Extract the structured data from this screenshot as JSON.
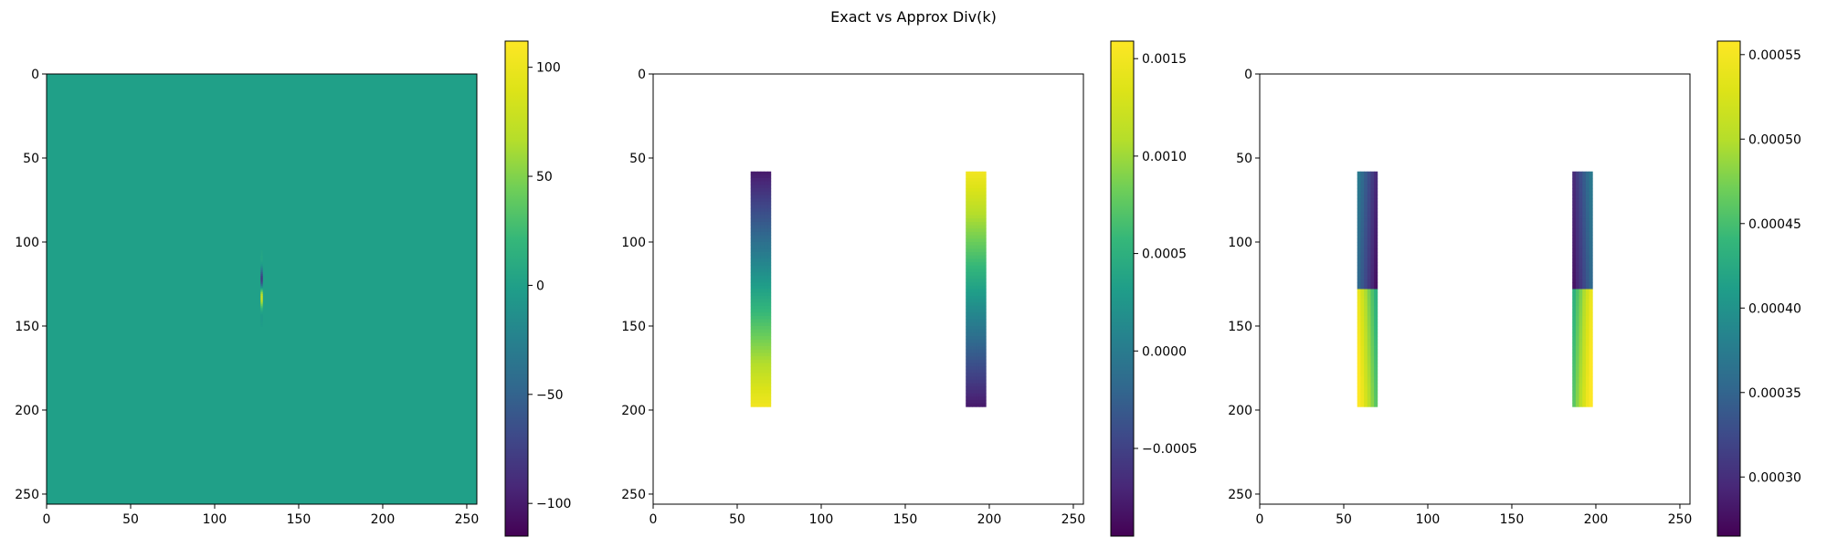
{
  "figure": {
    "title": "Exact vs Approx Div(k)"
  },
  "chart_data": [
    {
      "type": "heatmap",
      "title": "",
      "xlabel": "",
      "ylabel": "",
      "xlim": [
        0,
        256
      ],
      "ylim": [
        256,
        0
      ],
      "xticks": [
        0,
        50,
        100,
        150,
        200,
        250
      ],
      "yticks": [
        0,
        50,
        100,
        150,
        200,
        250
      ],
      "colormap": "viridis",
      "background_value": 0,
      "features": [
        {
          "kind": "vertical-spike",
          "x": 128,
          "y_center": 127,
          "y_extent": [
            105,
            150
          ],
          "value_range": [
            -110,
            110
          ]
        }
      ],
      "colorbar": {
        "vmin": -115,
        "vmax": 112,
        "ticks": [
          -100,
          -50,
          0,
          50,
          100
        ],
        "tick_labels": [
          "−100",
          "−50",
          "0",
          "50",
          "100"
        ]
      }
    },
    {
      "type": "heatmap",
      "title": "",
      "xlabel": "",
      "ylabel": "",
      "xlim": [
        0,
        256
      ],
      "ylim": [
        256,
        0
      ],
      "xticks": [
        0,
        50,
        100,
        150,
        200,
        250
      ],
      "yticks": [
        0,
        50,
        100,
        150,
        200,
        250
      ],
      "colormap": "viridis",
      "masked_background": true,
      "strips": [
        {
          "x": [
            58,
            70
          ],
          "y": [
            58,
            198
          ],
          "top_value": -0.0008,
          "bottom_value": 0.0015
        },
        {
          "x": [
            186,
            198
          ],
          "y": [
            58,
            198
          ],
          "top_value": 0.0015,
          "bottom_value": -0.0008
        }
      ],
      "colorbar": {
        "vmin": -0.00095,
        "vmax": 0.00159,
        "ticks": [
          -0.0005,
          0.0,
          0.0005,
          0.001,
          0.0015
        ],
        "tick_labels": [
          "−0.0005",
          "0.0000",
          "0.0005",
          "0.0010",
          "0.0015"
        ]
      }
    },
    {
      "type": "heatmap",
      "title": "",
      "xlabel": "",
      "ylabel": "",
      "xlim": [
        0,
        256
      ],
      "ylim": [
        256,
        0
      ],
      "xticks": [
        0,
        50,
        100,
        150,
        200,
        250
      ],
      "yticks": [
        0,
        50,
        100,
        150,
        200,
        250
      ],
      "colormap": "viridis",
      "masked_background": true,
      "strips": [
        {
          "x": [
            58,
            70
          ],
          "y": [
            58,
            198
          ],
          "left_top": 0.00038,
          "right_top": 0.00029,
          "left_bottom": 0.00055,
          "right_bottom": 0.00042,
          "break_y": 128
        },
        {
          "x": [
            186,
            198
          ],
          "y": [
            58,
            198
          ],
          "left_top": 0.00029,
          "right_top": 0.00038,
          "left_bottom": 0.00042,
          "right_bottom": 0.00055,
          "break_y": 128
        }
      ],
      "colorbar": {
        "vmin": 0.000265,
        "vmax": 0.000558,
        "ticks": [
          0.0003,
          0.00035,
          0.0004,
          0.00045,
          0.0005,
          0.00055
        ],
        "tick_labels": [
          "0.00030",
          "0.00035",
          "0.00040",
          "0.00045",
          "0.00050",
          "0.00055"
        ]
      }
    }
  ]
}
